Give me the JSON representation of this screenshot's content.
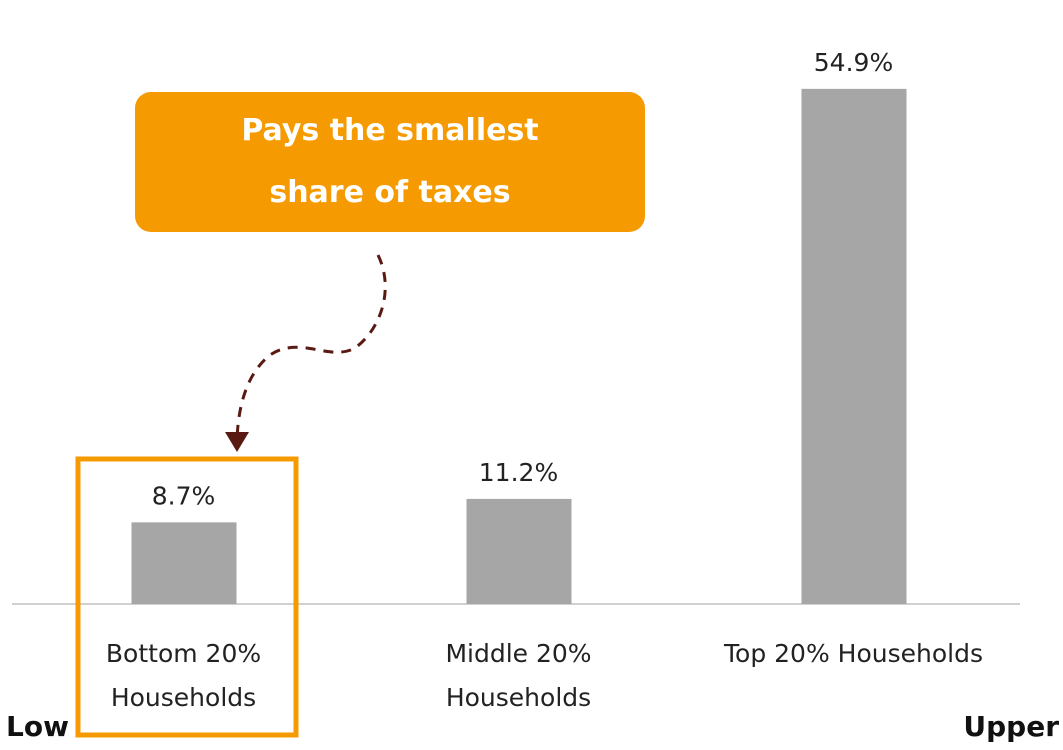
{
  "chart_data": {
    "type": "bar",
    "categories": [
      "Bottom 20% Households",
      "Middle 20% Households",
      "Top 20% Households"
    ],
    "values": [
      8.7,
      11.2,
      54.9
    ],
    "value_labels": [
      "8.7%",
      "11.2%",
      "54.9%"
    ],
    "color": "#a6a6a6",
    "ylim": [
      0,
      60
    ],
    "annotation": "Pays the smallest share of taxes",
    "axis_left_label": "Low",
    "axis_right_label": "Upper"
  }
}
